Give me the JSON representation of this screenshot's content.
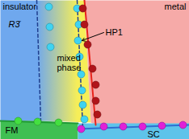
{
  "chart_data": {
    "type": "scatter",
    "tick_labels": false,
    "xlim": [
      0,
      234
    ],
    "ylim": [
      173,
      0
    ],
    "regions": [
      {
        "label": "insulator",
        "color": "#6fa8ee",
        "points": [
          [
            0,
            0
          ],
          [
            45,
            0
          ],
          [
            50,
            150
          ],
          [
            0,
            150
          ]
        ]
      },
      {
        "label": "mixed phase",
        "color": "#f6ee58",
        "points": [
          [
            45,
            0
          ],
          [
            104,
            0
          ],
          [
            112,
            152
          ],
          [
            50,
            150
          ]
        ]
      },
      {
        "label": "metal",
        "color": "#f6aaa8",
        "points": [
          [
            104,
            0
          ],
          [
            234,
            0
          ],
          [
            234,
            155
          ],
          [
            118,
            155
          ],
          [
            112,
            152
          ]
        ]
      },
      {
        "label": "FM",
        "color": "#3fbf52",
        "points": [
          [
            0,
            150
          ],
          [
            50,
            150
          ],
          [
            96,
            153
          ],
          [
            96,
            173
          ],
          [
            0,
            173
          ]
        ]
      },
      {
        "label": "SC",
        "color": "#5ec3ea",
        "points": [
          [
            96,
            153
          ],
          [
            234,
            153
          ],
          [
            234,
            173
          ],
          [
            96,
            173
          ]
        ]
      }
    ],
    "boundaries": [
      {
        "color": "#1f3f8f",
        "line_style": "dashed",
        "points": [
          [
            45,
            0
          ],
          [
            50,
            150
          ]
        ]
      },
      {
        "color": "#1f3f8f",
        "line_style": "dashed",
        "points": [
          [
            95,
            0
          ],
          [
            102,
            158
          ]
        ]
      },
      {
        "color": "#e8241c",
        "line_style": "solid",
        "points": [
          [
            104,
            0
          ],
          [
            118,
            155
          ]
        ]
      },
      {
        "color": "#1f9a35",
        "line_style": "solid",
        "points": [
          [
            0,
            150
          ],
          [
            96,
            153
          ]
        ]
      },
      {
        "color": "#2f6fd0",
        "line_style": "solid",
        "points": [
          [
            96,
            160
          ],
          [
            234,
            155
          ]
        ]
      }
    ],
    "series": [
      {
        "color": "#3fd3f2",
        "marker": "circle",
        "x": [
          60,
          61,
          62,
          95,
          97,
          96,
          98,
          100,
          101,
          102,
          104
        ],
        "values": [
          8,
          33,
          58,
          10,
          30,
          50,
          70,
          92,
          112,
          130,
          148
        ]
      },
      {
        "color": "#b0141a",
        "marker": "circle",
        "x": [
          102,
          104,
          108,
          114,
          118,
          118,
          120
        ],
        "values": [
          10,
          30,
          55,
          85,
          105,
          125,
          142
        ]
      },
      {
        "color": "#e020d8",
        "marker": "circle",
        "x": [
          100,
          128,
          152,
          176,
          200,
          226
        ],
        "values": [
          160,
          157,
          157,
          157,
          156,
          155
        ]
      },
      {
        "color": "#44e040",
        "marker": "circle",
        "x": [
          22,
          46,
          72
        ],
        "values": [
          150,
          151,
          152
        ]
      }
    ],
    "annotations": [
      {
        "text": "insulator",
        "x": 3,
        "y": 8
      },
      {
        "text": "R3̄",
        "x": 10,
        "y": 30,
        "style": "italic"
      },
      {
        "text": "mixed\nphase",
        "x": 70,
        "y": 78
      },
      {
        "text": "metal",
        "x": 230,
        "y": 8
      },
      {
        "text": "FM",
        "x": 6,
        "y": 162
      },
      {
        "text": "SC",
        "x": 182,
        "y": 167
      },
      {
        "text": "HP1",
        "x": 130,
        "y": 40,
        "arrow_to": [
          101,
          50
        ]
      }
    ]
  }
}
